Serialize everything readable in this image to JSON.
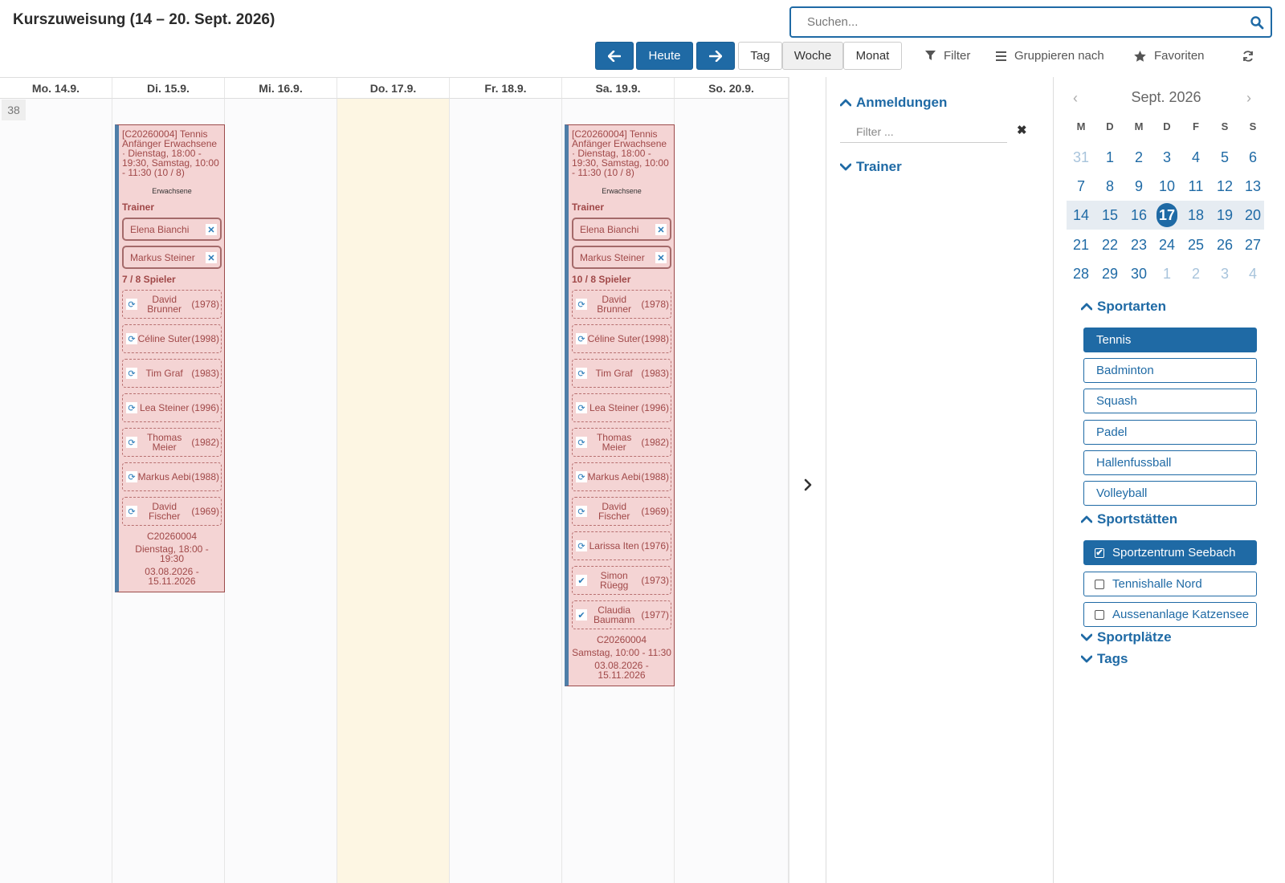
{
  "header": {
    "title": "Kurszuweisung (14 – 20. Sept. 2026)",
    "search_placeholder": "Suchen..."
  },
  "toolbar": {
    "today_label": "Heute",
    "view_day": "Tag",
    "view_week": "Woche",
    "view_month": "Monat",
    "filter_label": "Filter",
    "group_label": "Gruppieren nach",
    "favorites_label": "Favoriten"
  },
  "calendar": {
    "week_number": "38",
    "days": [
      "Mo. 14.9.",
      "Di. 15.9.",
      "Mi. 16.9.",
      "Do. 17.9.",
      "Fr. 18.9.",
      "Sa. 19.9.",
      "So. 20.9."
    ],
    "events": [
      {
        "title": "[C20260004] Tennis Anfänger Erwachsene · Dienstag, 18:00 - 19:30, Samstag, 10:00 - 11:30 (10 / 8)",
        "tag": "Erwachsene",
        "trainer_label": "Trainer",
        "trainers": [
          "Elena Bianchi",
          "Markus Steiner"
        ],
        "players_label": "7 / 8 Spieler",
        "players": [
          {
            "name": "David Brunner",
            "year": "(1978)",
            "icon": "sync-icon"
          },
          {
            "name": "Céline Suter",
            "year": "(1998)",
            "icon": "sync-icon"
          },
          {
            "name": "Tim Graf",
            "year": "(1983)",
            "icon": "sync-icon"
          },
          {
            "name": "Lea Steiner",
            "year": "(1996)",
            "icon": "sync-icon"
          },
          {
            "name": "Thomas Meier",
            "year": "(1982)",
            "icon": "sync-icon"
          },
          {
            "name": "Markus Aebi",
            "year": "(1988)",
            "icon": "sync-icon"
          },
          {
            "name": "David Fischer",
            "year": "(1969)",
            "icon": "sync-icon"
          }
        ],
        "code": "C20260004",
        "schedule": "Dienstag, 18:00 - 19:30",
        "period": "03.08.2026 - 15.11.2026"
      },
      {
        "title": "[C20260004] Tennis Anfänger Erwachsene · Dienstag, 18:00 - 19:30, Samstag, 10:00 - 11:30 (10 / 8)",
        "tag": "Erwachsene",
        "trainer_label": "Trainer",
        "trainers": [
          "Elena Bianchi",
          "Markus Steiner"
        ],
        "players_label": "10 / 8 Spieler",
        "players": [
          {
            "name": "David Brunner",
            "year": "(1978)",
            "icon": "sync-icon"
          },
          {
            "name": "Céline Suter",
            "year": "(1998)",
            "icon": "sync-icon"
          },
          {
            "name": "Tim Graf",
            "year": "(1983)",
            "icon": "sync-icon"
          },
          {
            "name": "Lea Steiner",
            "year": "(1996)",
            "icon": "sync-icon"
          },
          {
            "name": "Thomas Meier",
            "year": "(1982)",
            "icon": "sync-icon"
          },
          {
            "name": "Markus Aebi",
            "year": "(1988)",
            "icon": "sync-icon"
          },
          {
            "name": "David Fischer",
            "year": "(1969)",
            "icon": "sync-icon"
          },
          {
            "name": "Larissa Iten",
            "year": "(1976)",
            "icon": "sync-icon"
          },
          {
            "name": "Simon Rüegg",
            "year": "(1973)",
            "icon": "check-icon"
          },
          {
            "name": "Claudia Baumann",
            "year": "(1977)",
            "icon": "check-icon"
          }
        ],
        "code": "C20260004",
        "schedule": "Samstag, 10:00 - 11:30",
        "period": "03.08.2026 - 15.11.2026"
      }
    ]
  },
  "panel": {
    "registrations_label": "Anmeldungen",
    "filter_placeholder": "Filter ...",
    "trainer_label": "Trainer"
  },
  "mini_calendar": {
    "month": "Sept. 2026",
    "dow": [
      "M",
      "D",
      "M",
      "D",
      "F",
      "S",
      "S"
    ],
    "weeks": [
      [
        "31",
        "1",
        "2",
        "3",
        "4",
        "5",
        "6"
      ],
      [
        "7",
        "8",
        "9",
        "10",
        "11",
        "12",
        "13"
      ],
      [
        "14",
        "15",
        "16",
        "17",
        "18",
        "19",
        "20"
      ],
      [
        "21",
        "22",
        "23",
        "24",
        "25",
        "26",
        "27"
      ],
      [
        "28",
        "29",
        "30",
        "1",
        "2",
        "3",
        "4"
      ]
    ],
    "selected": "17"
  },
  "sports": {
    "label": "Sportarten",
    "items": [
      "Tennis",
      "Badminton",
      "Squash",
      "Padel",
      "Hallenfussball",
      "Volleyball"
    ],
    "active": "Tennis"
  },
  "venues": {
    "label": "Sportstätten",
    "items": [
      {
        "name": "Sportzentrum Seebach",
        "checked": true
      },
      {
        "name": "Tennishalle Nord",
        "checked": false
      },
      {
        "name": "Aussenanlage Katzensee",
        "checked": false
      }
    ]
  },
  "fields_label": "Sportplätze",
  "tags_label": "Tags",
  "colors": {
    "accent": "#1f6aa5",
    "event_bg": "#f4d4d4",
    "event_text": "#a04848",
    "today_bg": "#fdf6e3"
  }
}
